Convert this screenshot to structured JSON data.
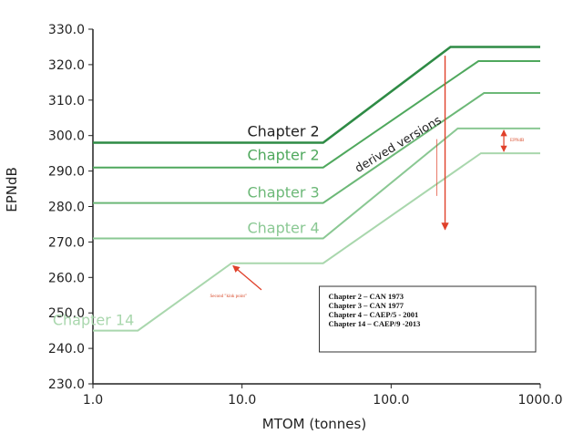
{
  "chart_data": {
    "type": "line",
    "xlabel": "MTOM (tonnes)",
    "ylabel": "EPNdB",
    "xscale": "log",
    "xlim": [
      1.0,
      1000.0
    ],
    "ylim": [
      230.0,
      330.0
    ],
    "x_ticks": [
      "1.0",
      "10.0",
      "100.0",
      "1000.0"
    ],
    "y_ticks": [
      "230.0",
      "240.0",
      "250.0",
      "260.0",
      "270.0",
      "280.0",
      "290.0",
      "300.0",
      "310.0",
      "320.0",
      "330.0"
    ],
    "series": [
      {
        "name": "Chapter 2",
        "color": "#2e8b45",
        "x": [
          1.0,
          35,
          250,
          1000.0
        ],
        "y": [
          298.0,
          298.0,
          325.0,
          325.0
        ]
      },
      {
        "name": "Chapter 2",
        "color": "#4fa85d",
        "x": [
          1.0,
          35,
          385,
          1000.0
        ],
        "y": [
          291.0,
          291.0,
          321.0,
          321.0
        ]
      },
      {
        "name": "Chapter 3",
        "color": "#6cb877",
        "x": [
          1.0,
          35,
          420,
          1000.0
        ],
        "y": [
          281.0,
          281.0,
          312.0,
          312.0
        ]
      },
      {
        "name": "Chapter 4",
        "color": "#8ac893",
        "x": [
          1.0,
          35,
          280,
          1000.0
        ],
        "y": [
          271.0,
          271.0,
          302.0,
          302.0
        ]
      },
      {
        "name": "Chapter 14",
        "color": "#a9d7ad",
        "x": [
          1.0,
          2.0,
          8.5,
          35,
          400,
          1000.0
        ],
        "y": [
          245.0,
          245.0,
          264.0,
          264.0,
          295.0,
          295.0
        ]
      }
    ],
    "annotations": {
      "derived_versions": "derived versions",
      "legend_lines": [
        "Chapter 2 – CAN 1973",
        "Chapter 3 – CAN 1977",
        "Chapter 4 – CAEP/5 - 2001",
        "Chapter 14 – CAEP/9 -2013"
      ],
      "second_kink": "Second \"kink point\"",
      "epndb_note": "EPNdB",
      "vertical_note": "",
      "arrow_color": "#e0402a"
    }
  }
}
